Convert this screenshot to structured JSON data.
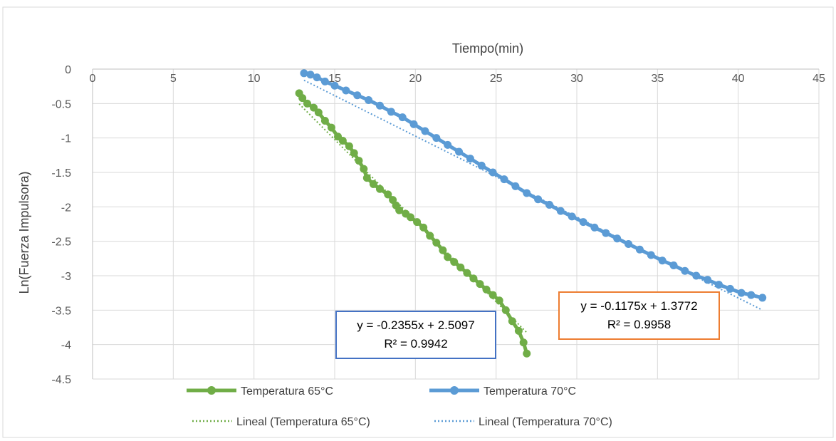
{
  "chart_data": {
    "type": "scatter",
    "title": "",
    "xlabel": "Tiempo(min)",
    "ylabel": "Ln(Fuerza Impulsora)",
    "xlim": [
      0,
      45
    ],
    "ylim": [
      -4.5,
      0
    ],
    "x_ticks": [
      "0",
      "5",
      "10",
      "15",
      "20",
      "25",
      "30",
      "35",
      "40",
      "45"
    ],
    "y_ticks": [
      "0",
      "-0.5",
      "-1",
      "-1.5",
      "-2",
      "-2.5",
      "-3",
      "-3.5",
      "-4",
      "-4.5"
    ],
    "x_axis_position": "top",
    "grid": true,
    "legend_position": "bottom",
    "series": [
      {
        "name": "Temperatura 65°C",
        "color": "#70AD47",
        "marker": "circle",
        "x_range": [
          12.8,
          26.9
        ],
        "y_range": [
          -0.35,
          -4.13
        ],
        "points": [
          [
            12.8,
            -0.35
          ],
          [
            13.0,
            -0.42
          ],
          [
            13.3,
            -0.5
          ],
          [
            13.7,
            -0.56
          ],
          [
            14.0,
            -0.63
          ],
          [
            14.4,
            -0.75
          ],
          [
            14.8,
            -0.85
          ],
          [
            15.2,
            -0.98
          ],
          [
            15.5,
            -1.04
          ],
          [
            15.9,
            -1.12
          ],
          [
            16.2,
            -1.22
          ],
          [
            16.5,
            -1.33
          ],
          [
            16.8,
            -1.45
          ],
          [
            17.0,
            -1.58
          ],
          [
            17.4,
            -1.67
          ],
          [
            17.8,
            -1.74
          ],
          [
            18.3,
            -1.82
          ],
          [
            18.6,
            -1.9
          ],
          [
            18.8,
            -1.98
          ],
          [
            19.0,
            -2.05
          ],
          [
            19.4,
            -2.1
          ],
          [
            19.7,
            -2.15
          ],
          [
            20.1,
            -2.22
          ],
          [
            20.5,
            -2.3
          ],
          [
            20.9,
            -2.42
          ],
          [
            21.3,
            -2.52
          ],
          [
            21.7,
            -2.63
          ],
          [
            22.0,
            -2.73
          ],
          [
            22.4,
            -2.8
          ],
          [
            22.8,
            -2.88
          ],
          [
            23.2,
            -2.96
          ],
          [
            23.6,
            -3.04
          ],
          [
            24.0,
            -3.12
          ],
          [
            24.4,
            -3.2
          ],
          [
            24.8,
            -3.28
          ],
          [
            25.2,
            -3.36
          ],
          [
            25.6,
            -3.5
          ],
          [
            26.0,
            -3.66
          ],
          [
            26.4,
            -3.8
          ],
          [
            26.7,
            -3.97
          ],
          [
            26.9,
            -4.13
          ]
        ],
        "trendline": {
          "name": "Lineal (Temperatura 65°C)",
          "slope": -0.2355,
          "intercept": 2.5097,
          "x_range": [
            12.8,
            26.9
          ],
          "equation": "y = -0.2355x + 2.5097",
          "r2": "R² = 0.9942"
        }
      },
      {
        "name": "Temperatura 70°C",
        "color": "#5B9BD5",
        "marker": "circle",
        "x_range": [
          13.1,
          41.5
        ],
        "y_range": [
          -0.06,
          -3.32
        ],
        "points": [
          [
            13.1,
            -0.06
          ],
          [
            13.5,
            -0.08
          ],
          [
            13.9,
            -0.12
          ],
          [
            14.4,
            -0.18
          ],
          [
            15.0,
            -0.24
          ],
          [
            15.7,
            -0.31
          ],
          [
            16.4,
            -0.38
          ],
          [
            17.1,
            -0.45
          ],
          [
            17.8,
            -0.53
          ],
          [
            18.5,
            -0.62
          ],
          [
            19.2,
            -0.7
          ],
          [
            19.9,
            -0.8
          ],
          [
            20.6,
            -0.9
          ],
          [
            21.3,
            -1.0
          ],
          [
            22.0,
            -1.1
          ],
          [
            22.7,
            -1.2
          ],
          [
            23.4,
            -1.3
          ],
          [
            24.1,
            -1.4
          ],
          [
            24.8,
            -1.5
          ],
          [
            25.5,
            -1.6
          ],
          [
            26.2,
            -1.7
          ],
          [
            26.9,
            -1.8
          ],
          [
            27.6,
            -1.89
          ],
          [
            28.3,
            -1.97
          ],
          [
            29.0,
            -2.06
          ],
          [
            29.7,
            -2.14
          ],
          [
            30.4,
            -2.22
          ],
          [
            31.1,
            -2.3
          ],
          [
            31.8,
            -2.38
          ],
          [
            32.5,
            -2.46
          ],
          [
            33.2,
            -2.54
          ],
          [
            33.9,
            -2.62
          ],
          [
            34.6,
            -2.7
          ],
          [
            35.3,
            -2.78
          ],
          [
            36.0,
            -2.85
          ],
          [
            36.7,
            -2.93
          ],
          [
            37.4,
            -3.0
          ],
          [
            38.1,
            -3.06
          ],
          [
            38.8,
            -3.13
          ],
          [
            39.5,
            -3.19
          ],
          [
            40.2,
            -3.25
          ],
          [
            40.8,
            -3.28
          ],
          [
            41.5,
            -3.32
          ]
        ],
        "trendline": {
          "name": "Lineal (Temperatura 70°C)",
          "slope": -0.1175,
          "intercept": 1.3772,
          "x_range": [
            13.1,
            41.5
          ],
          "equation": "y = -0.1175x + 1.3772",
          "r2": "R² = 0.9958"
        }
      }
    ],
    "annotations": [
      {
        "series": 0,
        "lines": [
          "y = -0.2355x + 2.5097",
          "R² = 0.9942"
        ],
        "border_color": "#4472C4"
      },
      {
        "series": 1,
        "lines": [
          "y = -0.1175x + 1.3772",
          "R² = 0.9958"
        ],
        "border_color": "#ED7D31"
      }
    ]
  }
}
